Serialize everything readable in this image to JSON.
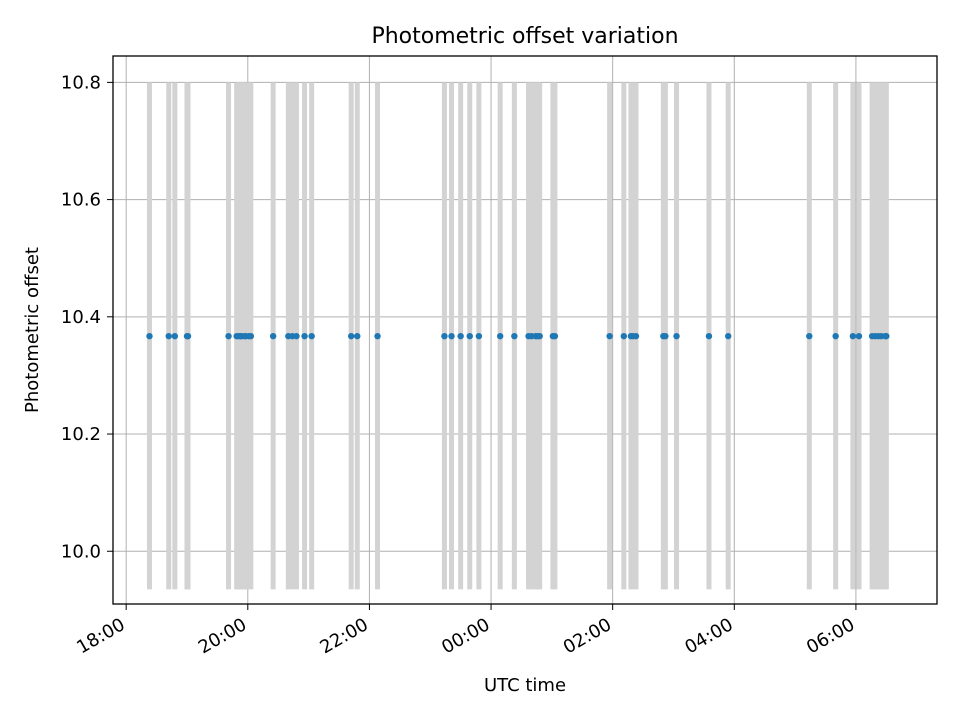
{
  "chart_data": {
    "type": "scatter",
    "title": "Photometric offset variation",
    "xlabel": "UTC time",
    "ylabel": "Photometric offset",
    "grid": true,
    "x_axis": {
      "ticks": [
        {
          "label": "18:00",
          "hours_from_1800": 0
        },
        {
          "label": "20:00",
          "hours_from_1800": 2
        },
        {
          "label": "22:00",
          "hours_from_1800": 4
        },
        {
          "label": "00:00",
          "hours_from_1800": 6
        },
        {
          "label": "02:00",
          "hours_from_1800": 8
        },
        {
          "label": "04:00",
          "hours_from_1800": 10
        },
        {
          "label": "06:00",
          "hours_from_1800": 12
        }
      ],
      "range": [
        "17:47",
        "07:20"
      ]
    },
    "y_axis": {
      "ticks": [
        "10.0",
        "10.2",
        "10.4",
        "10.6",
        "10.8"
      ],
      "tick_values": [
        10.0,
        10.2,
        10.4,
        10.6,
        10.8
      ],
      "range": [
        9.91,
        10.845
      ]
    },
    "bands": {
      "color": "#d3d3d3",
      "y_range": [
        9.935,
        10.8
      ],
      "times": [
        "18:23",
        "18:42",
        "18:48",
        "19:00",
        "19:01",
        "19:41",
        "19:49",
        "19:51",
        "19:53",
        "19:54",
        "19:57",
        "19:58",
        "20:01",
        "20:03",
        "20:25",
        "20:40",
        "20:44",
        "20:48",
        "20:56",
        "21:03",
        "21:42",
        "21:48",
        "22:08",
        "23:14",
        "23:21",
        "23:30",
        "23:39",
        "23:48",
        "00:09",
        "00:23",
        "00:37",
        "00:40",
        "00:44",
        "00:46",
        "00:48",
        "01:01",
        "01:03",
        "01:57",
        "02:11",
        "02:18",
        "02:20",
        "02:23",
        "02:50",
        "02:52",
        "03:03",
        "03:35",
        "03:54",
        "05:14",
        "05:40",
        "05:57",
        "06:03",
        "06:16",
        "06:19",
        "06:22",
        "06:25",
        "06:29",
        "06:30"
      ]
    },
    "series": [
      {
        "color": "#1f77b4",
        "points": [
          {
            "t": "18:23",
            "y": 10.367
          },
          {
            "t": "18:42",
            "y": 10.367
          },
          {
            "t": "18:48",
            "y": 10.367
          },
          {
            "t": "19:00",
            "y": 10.367
          },
          {
            "t": "19:01",
            "y": 10.367
          },
          {
            "t": "19:41",
            "y": 10.367
          },
          {
            "t": "19:49",
            "y": 10.367
          },
          {
            "t": "19:51",
            "y": 10.367
          },
          {
            "t": "19:53",
            "y": 10.367
          },
          {
            "t": "19:54",
            "y": 10.367
          },
          {
            "t": "19:57",
            "y": 10.367
          },
          {
            "t": "19:58",
            "y": 10.367
          },
          {
            "t": "20:01",
            "y": 10.367
          },
          {
            "t": "20:03",
            "y": 10.367
          },
          {
            "t": "20:25",
            "y": 10.367
          },
          {
            "t": "20:40",
            "y": 10.367
          },
          {
            "t": "20:44",
            "y": 10.367
          },
          {
            "t": "20:48",
            "y": 10.367
          },
          {
            "t": "20:56",
            "y": 10.367
          },
          {
            "t": "21:03",
            "y": 10.367
          },
          {
            "t": "21:42",
            "y": 10.367
          },
          {
            "t": "21:48",
            "y": 10.367
          },
          {
            "t": "22:08",
            "y": 10.367
          },
          {
            "t": "23:14",
            "y": 10.367
          },
          {
            "t": "23:21",
            "y": 10.367
          },
          {
            "t": "23:30",
            "y": 10.367
          },
          {
            "t": "23:39",
            "y": 10.367
          },
          {
            "t": "23:48",
            "y": 10.367
          },
          {
            "t": "00:09",
            "y": 10.367
          },
          {
            "t": "00:23",
            "y": 10.367
          },
          {
            "t": "00:37",
            "y": 10.367
          },
          {
            "t": "00:40",
            "y": 10.367
          },
          {
            "t": "00:44",
            "y": 10.367
          },
          {
            "t": "00:46",
            "y": 10.367
          },
          {
            "t": "00:48",
            "y": 10.367
          },
          {
            "t": "01:01",
            "y": 10.367
          },
          {
            "t": "01:03",
            "y": 10.367
          },
          {
            "t": "01:57",
            "y": 10.367
          },
          {
            "t": "02:11",
            "y": 10.367
          },
          {
            "t": "02:18",
            "y": 10.367
          },
          {
            "t": "02:20",
            "y": 10.367
          },
          {
            "t": "02:23",
            "y": 10.367
          },
          {
            "t": "02:50",
            "y": 10.367
          },
          {
            "t": "02:52",
            "y": 10.367
          },
          {
            "t": "03:03",
            "y": 10.367
          },
          {
            "t": "03:35",
            "y": 10.367
          },
          {
            "t": "03:54",
            "y": 10.367
          },
          {
            "t": "05:14",
            "y": 10.367
          },
          {
            "t": "05:40",
            "y": 10.367
          },
          {
            "t": "05:57",
            "y": 10.367
          },
          {
            "t": "06:03",
            "y": 10.367
          },
          {
            "t": "06:16",
            "y": 10.367
          },
          {
            "t": "06:19",
            "y": 10.367
          },
          {
            "t": "06:22",
            "y": 10.367
          },
          {
            "t": "06:25",
            "y": 10.367
          },
          {
            "t": "06:29",
            "y": 10.367
          },
          {
            "t": "06:30",
            "y": 10.367
          }
        ]
      }
    ]
  }
}
